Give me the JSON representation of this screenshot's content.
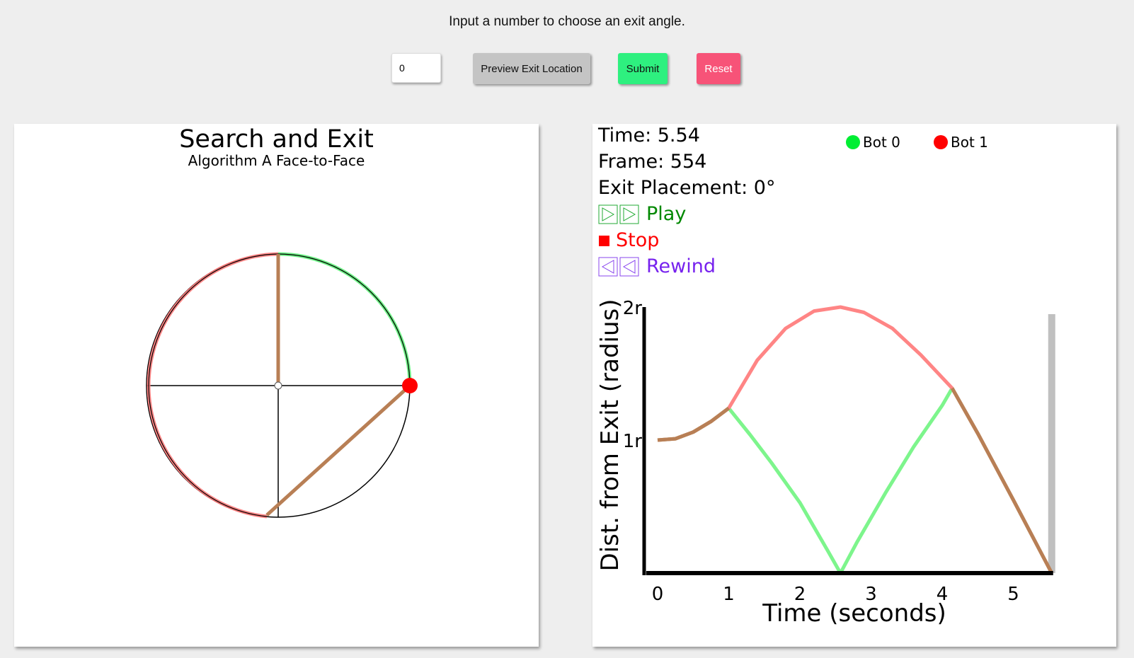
{
  "instruction": "Input a number to choose an exit angle.",
  "controls": {
    "angle_value": "0",
    "preview_label": "Preview Exit Location",
    "submit_label": "Submit",
    "reset_label": "Reset"
  },
  "simulation": {
    "title": "Search and Exit",
    "subtitle": "Algorithm A Face-to-Face"
  },
  "status": {
    "time_text": "Time: 5.54",
    "frame_text": "Frame: 554",
    "exit_text": "Exit Placement: 0°"
  },
  "playback": {
    "play_label": "Play",
    "stop_label": "Stop",
    "rewind_label": "Rewind"
  },
  "legend": {
    "bot0": "Bot 0",
    "bot1": "Bot 1"
  },
  "colors": {
    "bot0": "#00ee33",
    "bot1": "#ff0000",
    "combined": "#b87f55",
    "play": "#008800",
    "stop": "#ff0000",
    "rewind": "#7722ee"
  },
  "chart_data": {
    "type": "line",
    "xlabel": "Time (seconds)",
    "ylabel": "Dist. from Exit (radius)",
    "x_ticks": [
      "0",
      "1",
      "2",
      "3",
      "4",
      "5"
    ],
    "y_ticks": [
      "1r",
      "2r"
    ],
    "xlim": [
      0,
      5.54
    ],
    "ylim": [
      0,
      2
    ],
    "current_time": 5.54,
    "series": [
      {
        "name": "Bot 0",
        "x": [
          0,
          0.25,
          0.5,
          0.75,
          1.0,
          1.3,
          1.6,
          2.0,
          2.4,
          2.57,
          2.8,
          3.2,
          3.6,
          4.0,
          4.14,
          4.5,
          5.0,
          5.54
        ],
        "y": [
          1.0,
          1.01,
          1.06,
          1.14,
          1.24,
          1.04,
          0.83,
          0.53,
          0.16,
          0.0,
          0.23,
          0.6,
          0.95,
          1.26,
          1.39,
          1.05,
          0.55,
          0.0
        ]
      },
      {
        "name": "Bot 1",
        "x": [
          0,
          0.25,
          0.5,
          0.75,
          1.0,
          1.4,
          1.8,
          2.2,
          2.57,
          2.9,
          3.3,
          3.7,
          4.14,
          4.5,
          5.0,
          5.54
        ],
        "y": [
          1.0,
          1.01,
          1.06,
          1.14,
          1.24,
          1.6,
          1.84,
          1.97,
          2.0,
          1.96,
          1.84,
          1.64,
          1.39,
          1.05,
          0.55,
          0.0
        ]
      }
    ]
  }
}
